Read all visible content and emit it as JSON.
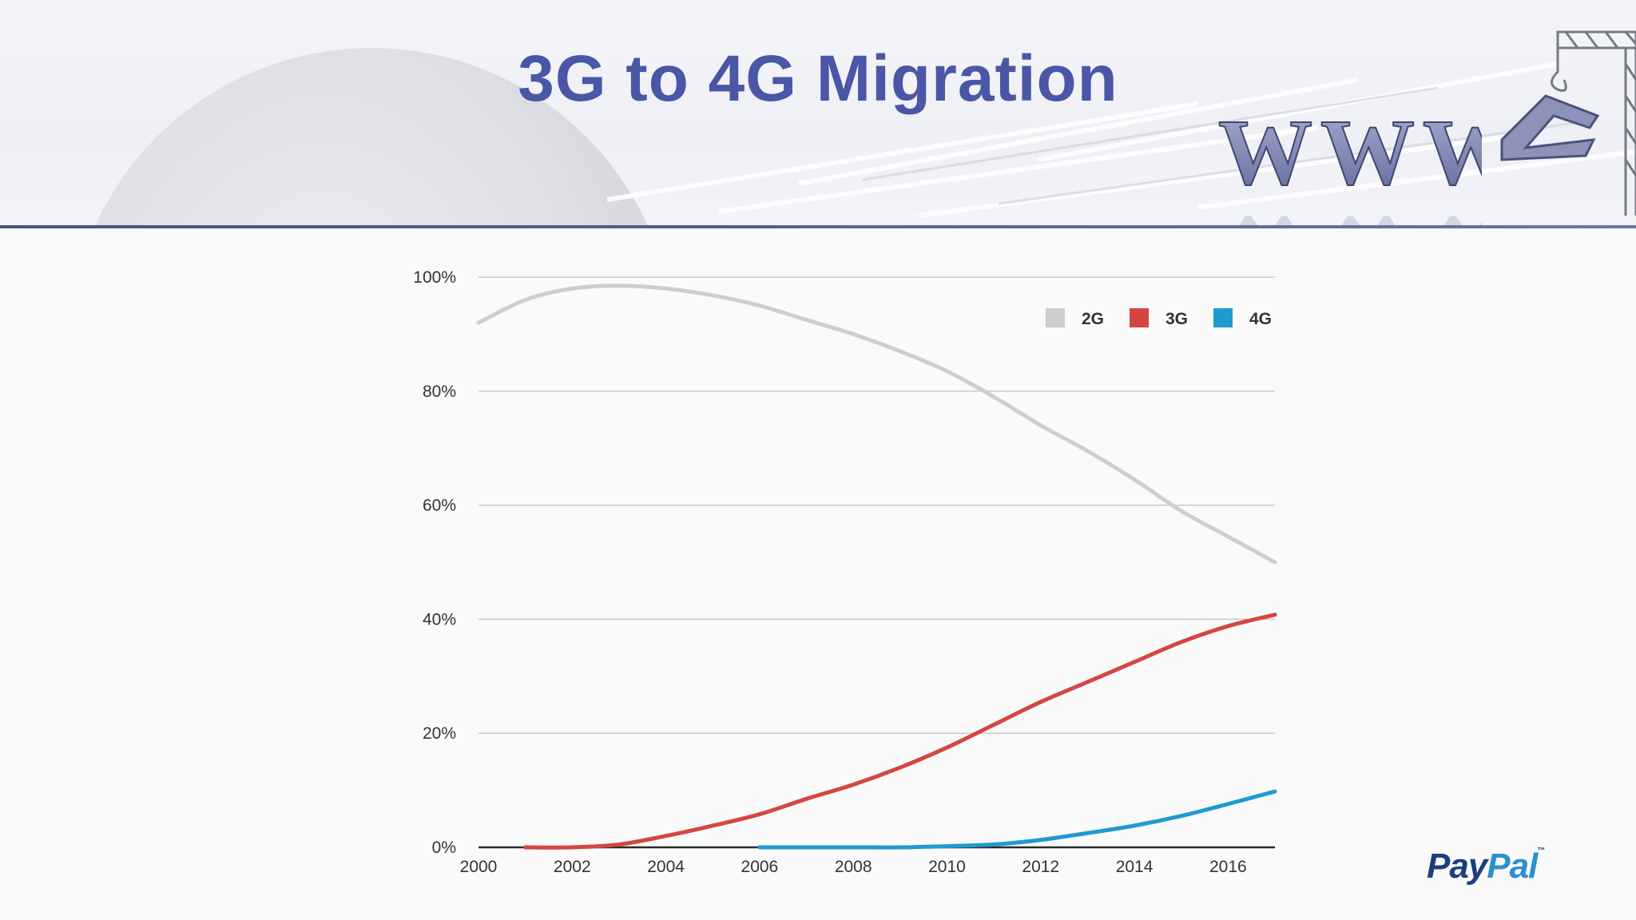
{
  "slide": {
    "title": "3G to 4G Migration",
    "brand": "PayPal",
    "brand_part_1": "Pay",
    "brand_part_2": "Pal",
    "trademark": "™",
    "header_logo_text": "WWW",
    "colors": {
      "title": "#4a56a6",
      "header_rule": "#4a5478"
    }
  },
  "chart_data": {
    "type": "line",
    "title": "",
    "xlabel": "",
    "ylabel": "",
    "xlim": [
      2000,
      2017
    ],
    "ylim": [
      0,
      100
    ],
    "x_ticks": [
      2000,
      2002,
      2004,
      2006,
      2008,
      2010,
      2012,
      2014,
      2016
    ],
    "x_tick_labels": [
      "2000",
      "2002",
      "2004",
      "2006",
      "2008",
      "2010",
      "2012",
      "2014",
      "2016"
    ],
    "y_ticks": [
      0,
      20,
      40,
      60,
      80,
      100
    ],
    "y_tick_labels": [
      "0%",
      "20%",
      "40%",
      "60%",
      "80%",
      "100%"
    ],
    "grid": true,
    "legend_position": "top-right",
    "series": [
      {
        "name": "2G",
        "color": "#cfcdd1",
        "x": [
          2000,
          2001,
          2002,
          2003,
          2004,
          2005,
          2006,
          2007,
          2008,
          2009,
          2010,
          2011,
          2012,
          2013,
          2014,
          2015,
          2016,
          2017
        ],
        "values": [
          92,
          96,
          98,
          98.5,
          98,
          96.8,
          95,
          92.5,
          90,
          87,
          83.5,
          79,
          74,
          69.5,
          64.5,
          59,
          54.5,
          50
        ]
      },
      {
        "name": "3G",
        "color": "#d44643",
        "x": [
          2001,
          2002,
          2003,
          2004,
          2005,
          2006,
          2007,
          2008,
          2009,
          2010,
          2011,
          2012,
          2013,
          2014,
          2015,
          2016,
          2017
        ],
        "values": [
          0,
          0,
          0.5,
          2,
          3.8,
          5.8,
          8.5,
          11,
          14,
          17.5,
          21.5,
          25.5,
          29,
          32.5,
          36,
          38.8,
          40.8
        ]
      },
      {
        "name": "4G",
        "color": "#1f9bd0",
        "x": [
          2006,
          2007,
          2008,
          2009,
          2010,
          2011,
          2012,
          2013,
          2014,
          2015,
          2016,
          2017
        ],
        "values": [
          0,
          0,
          0,
          0,
          0.2,
          0.5,
          1.3,
          2.5,
          3.8,
          5.5,
          7.6,
          9.8
        ]
      }
    ]
  }
}
